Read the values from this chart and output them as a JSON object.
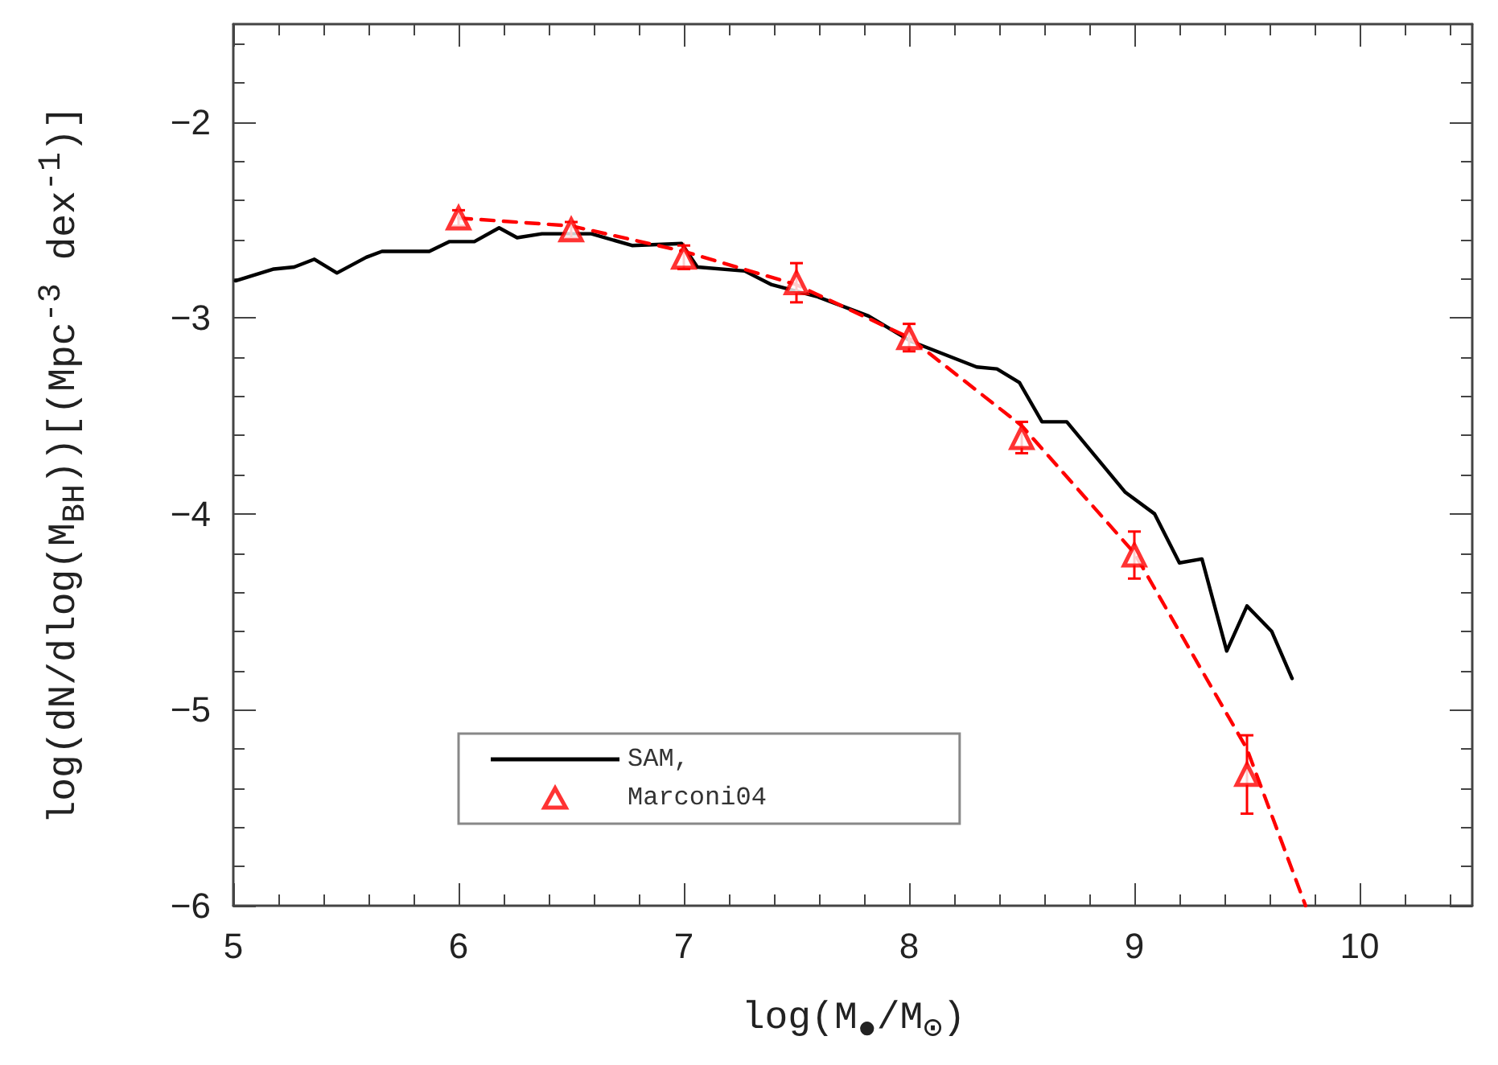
{
  "chart_data": {
    "type": "line",
    "xlabel": "log(M$_{●}$/M$_{⊙}$)",
    "ylabel": "log(dN/dlog(M$_{BH}$))[(Mpc$^{-3}$ dex$^{-1}$)]",
    "xlim": [
      5,
      10.5
    ],
    "xticks": [
      5,
      6,
      7,
      8,
      9,
      10
    ],
    "ylim": [
      -6,
      -1.5
    ],
    "yticks": [
      -6,
      -5,
      -4,
      -3,
      -2
    ],
    "grid": false,
    "legend": "bottom left",
    "series": [
      {
        "name": "SAM,",
        "type": "line",
        "color": "#000000",
        "line_style": "solid",
        "marker": "none",
        "x": [
          5.01,
          5.18,
          5.27,
          5.36,
          5.46,
          5.59,
          5.66,
          5.87,
          5.96,
          6.07,
          6.18,
          6.26,
          6.37,
          6.59,
          6.77,
          6.99,
          7.06,
          7.27,
          7.39,
          7.59,
          7.82,
          8.01,
          8.3,
          8.39,
          8.49,
          8.59,
          8.7,
          8.96,
          9.09,
          9.2,
          9.3,
          9.41,
          9.5,
          9.61,
          9.7
        ],
        "values": [
          -2.81,
          -2.75,
          -2.74,
          -2.7,
          -2.77,
          -2.69,
          -2.66,
          -2.66,
          -2.61,
          -2.61,
          -2.54,
          -2.59,
          -2.57,
          -2.57,
          -2.63,
          -2.62,
          -2.74,
          -2.76,
          -2.83,
          -2.89,
          -2.99,
          -3.12,
          -3.25,
          -3.26,
          -3.33,
          -3.53,
          -3.53,
          -3.89,
          -4.0,
          -4.25,
          -4.23,
          -4.7,
          -4.47,
          -4.6,
          -4.84
        ]
      },
      {
        "name": "Marconi04",
        "type": "scatter",
        "color": "#ff0000",
        "marker": "triangle",
        "x": [
          6,
          6.5,
          7,
          7.5,
          8,
          8.5,
          9,
          9.5
        ],
        "values": [
          -2.49,
          -2.55,
          -2.69,
          -2.82,
          -3.1,
          -3.61,
          -4.21,
          -5.33
        ],
        "errors": [
          0.04,
          0.04,
          0.06,
          0.1,
          0.07,
          0.08,
          0.12,
          0.2
        ]
      },
      {
        "type": "line",
        "color": "#ff0000",
        "line_style": "dashed",
        "marker": "none",
        "x": [
          6,
          6.5,
          7,
          7.5,
          8,
          8.5,
          9,
          9.5,
          9.76
        ],
        "values": [
          -2.49,
          -2.53,
          -2.66,
          -2.83,
          -3.1,
          -3.55,
          -4.2,
          -5.2,
          -6.0
        ]
      }
    ]
  }
}
